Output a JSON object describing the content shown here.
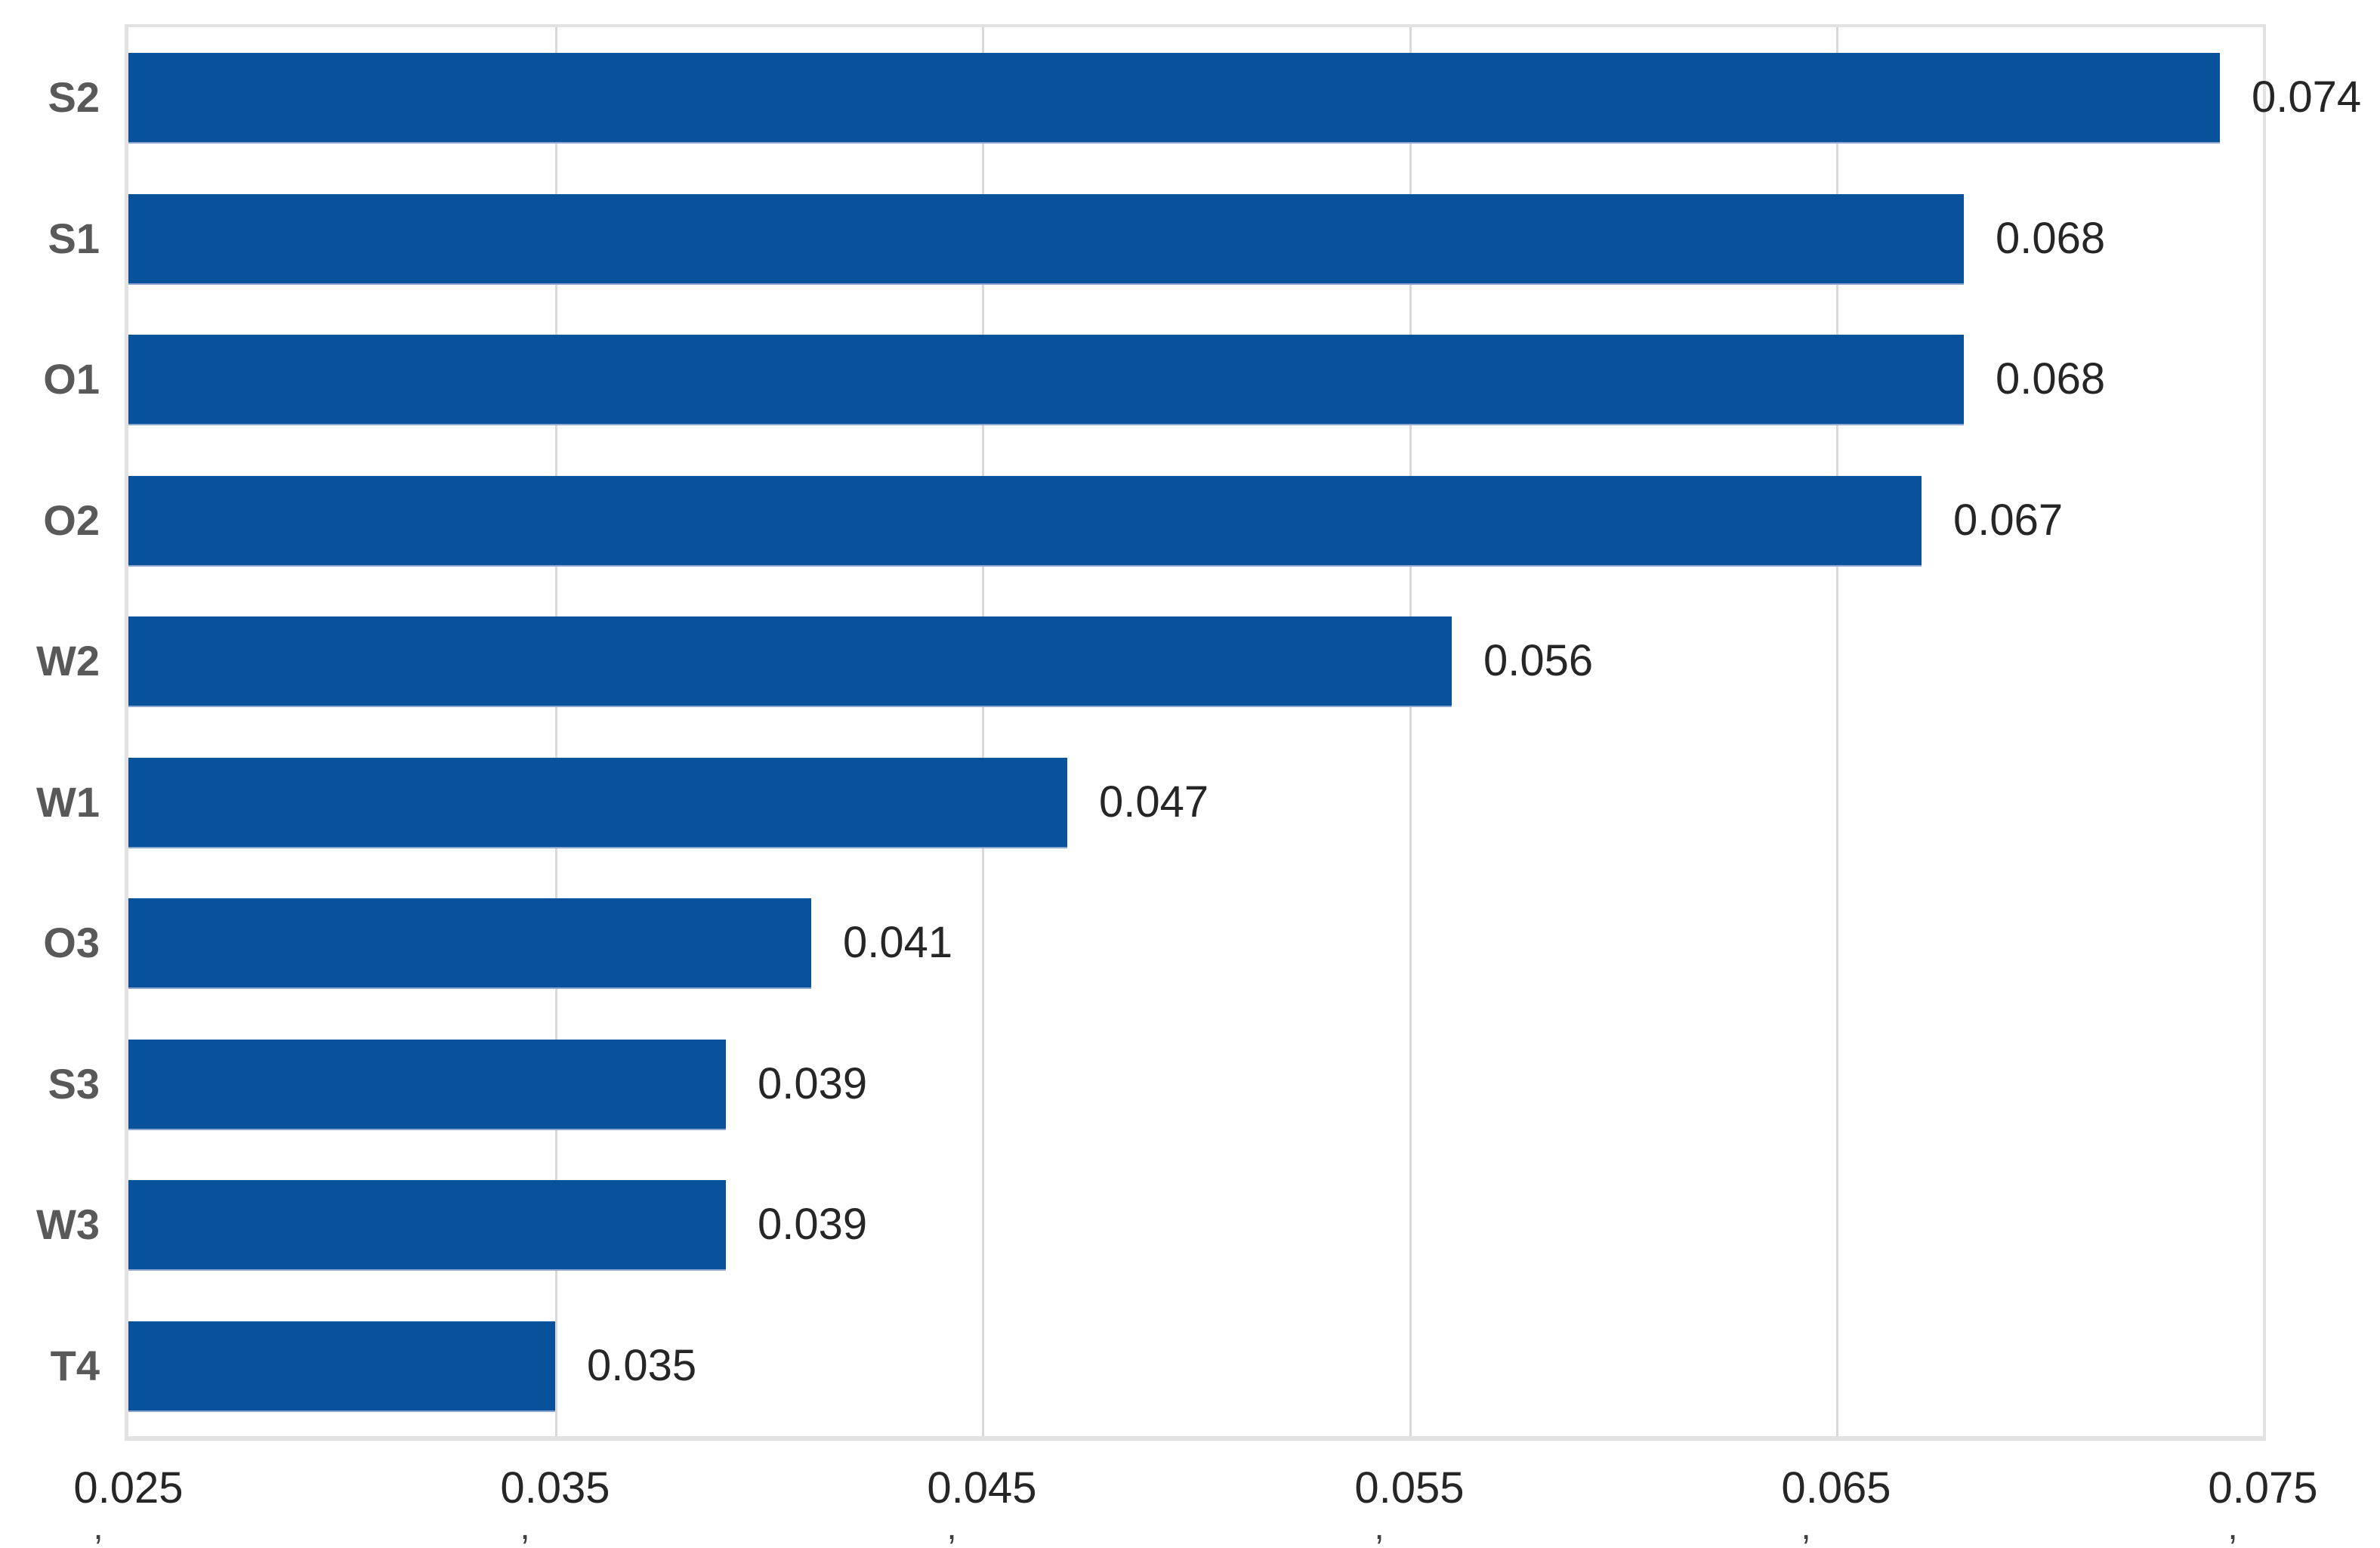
{
  "chart_data": {
    "type": "bar",
    "orientation": "horizontal",
    "title": "",
    "xlabel": "",
    "ylabel": "",
    "categories": [
      "S2",
      "S1",
      "O1",
      "O2",
      "W2",
      "W1",
      "O3",
      "S3",
      "W3",
      "T4"
    ],
    "values": [
      0.074,
      0.068,
      0.068,
      0.067,
      0.056,
      0.047,
      0.041,
      0.039,
      0.039,
      0.035
    ],
    "value_labels": [
      "0.074",
      "0.068",
      "0.068",
      "0.067",
      "0.056",
      "0.047",
      "0.041",
      "0.039",
      "0.039",
      "0.035"
    ],
    "x_ticks": [
      "0.025",
      "0.035",
      "0.045",
      "0.055",
      "0.065",
      "0.075"
    ],
    "x_tick_values": [
      0.025,
      0.035,
      0.045,
      0.055,
      0.065,
      0.075
    ],
    "tick_accent_mark": ",",
    "xlim": [
      0.025,
      0.075
    ],
    "grid": "vertical",
    "legend": "none",
    "colors": {
      "bar": "#08529c",
      "grid": "#d9d9d9",
      "plot_border": "#e2e2e2",
      "category_label": "#595959",
      "value_label": "#262626",
      "tick_label": "#262626",
      "background": "#ffffff"
    }
  }
}
